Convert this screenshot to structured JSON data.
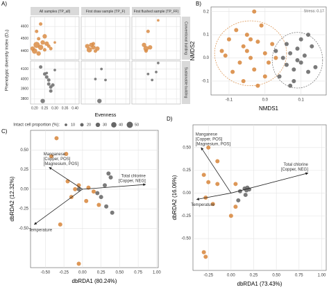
{
  "chart_data": [
    {
      "type": "faceted_scatter",
      "panel_label": "A)",
      "x_label": "Evenness",
      "y_label": "Phenotypic diversity index (D₂)",
      "columns": [
        "All samples (TP_all)",
        "First draw sample (TP_F)",
        "First flushed sample (TP_FF)"
      ],
      "xlim": [
        0.18,
        0.42
      ],
      "xticks": [
        {
          "value": 0.2,
          "label": "0.20"
        },
        0.25,
        {
          "value": 0.3,
          "label": "0.30"
        },
        0.35,
        {
          "value": 0.4,
          "label": "0.40"
        }
      ],
      "rows": [
        {
          "label": "Conventional building",
          "color": "#d98c45",
          "ylim": [
            4330,
            4680
          ],
          "yticks": [
            4400,
            4500,
            4600
          ],
          "panels": [
            {
              "x": [
                0.19,
                0.2,
                0.21,
                0.22,
                0.22,
                0.23,
                0.24,
                0.25,
                0.26,
                0.21,
                0.23,
                0.25,
                0.27,
                0.28,
                0.3
              ],
              "y": [
                4420,
                4400,
                4450,
                4380,
                4500,
                4430,
                4470,
                4410,
                4460,
                4560,
                4620,
                4520,
                4440,
                4420,
                4470
              ],
              "size": [
                30,
                40,
                50,
                30,
                20,
                40,
                30,
                20,
                30,
                20,
                20,
                30,
                20,
                20,
                10
              ]
            },
            {
              "x": [
                0.21,
                0.22,
                0.23,
                0.24,
                0.25,
                0.26,
                0.24
              ],
              "y": [
                4440,
                4410,
                4450,
                4430,
                4400,
                4420,
                4460
              ],
              "size": [
                30,
                40,
                30,
                30,
                20,
                30,
                20
              ]
            },
            {
              "x": [
                0.24,
                0.25,
                0.26,
                0.27,
                0.25,
                0.31
              ],
              "y": [
                4450,
                4420,
                4560,
                4430,
                4400,
                4650
              ],
              "size": [
                30,
                40,
                20,
                30,
                20,
                10
              ]
            }
          ]
        },
        {
          "label": "Sustainable building",
          "color": "#6b6b6b",
          "ylim": [
            3750,
            4180
          ],
          "yticks": [
            3800,
            3900,
            4000,
            4100
          ],
          "panels": [
            {
              "x": [
                0.23,
                0.25,
                0.26,
                0.27,
                0.27,
                0.28,
                0.28,
                0.29,
                0.26,
                0.24,
                0.3
              ],
              "y": [
                4120,
                4050,
                4020,
                3950,
                3990,
                3920,
                3880,
                3940,
                4060,
                3780,
                4090
              ],
              "size": [
                20,
                20,
                20,
                20,
                20,
                20,
                20,
                20,
                10,
                30,
                10
              ]
            },
            {
              "x": [
                0.25,
                0.28,
                0.3,
                0.27
              ],
              "y": [
                4000,
                4100,
                3990,
                3780
              ],
              "size": [
                10,
                10,
                10,
                30
              ]
            },
            {
              "x": [
                0.26,
                0.28,
                0.3,
                0.31
              ],
              "y": [
                4050,
                3990,
                4070,
                4160
              ],
              "size": [
                10,
                10,
                10,
                10
              ]
            }
          ]
        }
      ],
      "size_legend": {
        "title": "Intact cell proportion (%):",
        "values": [
          10,
          20,
          30,
          40,
          50
        ]
      }
    },
    {
      "type": "scatter",
      "panel_label": "B)",
      "x_label": "NMDS1",
      "y_label": "NMDS2",
      "annotation": "Stress: 0.17",
      "xlim": [
        -0.15,
        0.17
      ],
      "xticks": [
        -0.1,
        {
          "value": 0,
          "label": "0.0"
        },
        0.1
      ],
      "ylim": [
        -0.16,
        0.22
      ],
      "yticks": [
        -0.1,
        {
          "value": 0,
          "label": "0.0"
        },
        0.1,
        0.2
      ],
      "series": [
        {
          "color": "#d98c45",
          "x": [
            -0.12,
            -0.1,
            -0.08,
            -0.07,
            -0.06,
            -0.05,
            -0.04,
            -0.03,
            -0.02,
            -0.01,
            0.0,
            0.01,
            0.02,
            -0.09,
            -0.06,
            -0.03,
            0.0,
            -0.11,
            -0.05,
            -0.02,
            0.03,
            -0.04
          ],
          "y": [
            0.03,
            0.08,
            0.12,
            -0.02,
            0.05,
            0.1,
            0.0,
            -0.05,
            0.07,
            0.14,
            0.02,
            -0.02,
            0.06,
            -0.06,
            -0.1,
            0.2,
            -0.08,
            0.01,
            0.03,
            -0.12,
            0.0,
            0.08
          ],
          "ellipse": {
            "cx": -0.04,
            "cy": 0.02,
            "rx": 0.1,
            "ry": 0.14
          }
        },
        {
          "color": "#6b6b6b",
          "x": [
            0.05,
            0.06,
            0.07,
            0.08,
            0.09,
            0.1,
            0.11,
            0.12,
            0.13,
            0.04,
            0.06,
            0.08,
            0.1,
            0.12,
            0.03,
            0.07,
            0.09,
            0.14
          ],
          "y": [
            0.0,
            -0.03,
            0.02,
            -0.05,
            0.04,
            -0.02,
            0.01,
            -0.06,
            0.05,
            -0.08,
            0.06,
            -0.1,
            0.08,
            0.1,
            0.03,
            -0.12,
            -0.01,
            -0.04
          ],
          "ellipse": {
            "cx": 0.09,
            "cy": -0.01,
            "rx": 0.07,
            "ry": 0.12
          }
        }
      ]
    },
    {
      "type": "biplot",
      "panel_label": "C)",
      "x_label": "dbRDA1 (80.24%)",
      "y_label": "dbRDA2 (12.32%)",
      "xlim": [
        -0.7,
        1.02
      ],
      "xticks": [
        {
          "value": -0.5,
          "label": "-0.50"
        },
        -0.25,
        {
          "value": 0,
          "label": "0.00"
        },
        0.25,
        {
          "value": 0.5,
          "label": "0.50"
        },
        0.75,
        {
          "value": 1,
          "label": "1.00"
        }
      ],
      "ylim": [
        -1.0,
        0.75
      ],
      "yticks": [
        {
          "value": -0.5,
          "label": "-0.50"
        },
        -0.25,
        {
          "value": 0,
          "label": "0.00"
        },
        0.25,
        {
          "value": 0.5,
          "label": "0.50"
        }
      ],
      "series": [
        {
          "color": "#d98c45",
          "x": [
            -0.35,
            -0.42,
            -0.22,
            -0.2,
            -0.1,
            -0.15,
            -0.05,
            0.08,
            0.15,
            0.22,
            -0.05,
            -0.3,
            0.05
          ],
          "y": [
            0.65,
            0.42,
            0.45,
            0.1,
            0.0,
            -0.1,
            0.05,
            0.02,
            -0.03,
            -0.2,
            -0.95,
            -0.45,
            -0.15
          ]
        },
        {
          "color": "#6b6b6b",
          "x": [
            0.35,
            0.38,
            0.3,
            0.25,
            0.32,
            0.4,
            0.2,
            -0.05
          ],
          "y": [
            0.2,
            0.15,
            0.05,
            -0.1,
            -0.22,
            -0.3,
            -0.05,
            0.0
          ]
        }
      ],
      "arrows": [
        {
          "label_lines": [
            "Manganese",
            "[Copper, POS]",
            "[Magnesium, POS]"
          ],
          "x": -0.45,
          "y": 0.28
        },
        {
          "label_lines": [
            "Temperature"
          ],
          "x": -0.65,
          "y": -0.45
        },
        {
          "label_lines": [
            "Total chlorine",
            "[Copper, NEG]"
          ],
          "x": 0.85,
          "y": 0.06
        }
      ]
    },
    {
      "type": "biplot",
      "panel_label": "D)",
      "x_label": "dbRDA1 (73.43%)",
      "y_label": "dbRDA2 (16.06%)",
      "xlim": [
        -0.42,
        1.05
      ],
      "xticks": [
        -0.25,
        {
          "value": 0,
          "label": "0.00"
        },
        0.25,
        {
          "value": 0.5,
          "label": "0.50"
        },
        0.75,
        {
          "value": 1,
          "label": "1.00"
        }
      ],
      "ylim": [
        -0.85,
        0.75
      ],
      "yticks": [
        {
          "value": -0.5,
          "label": "-0.50"
        },
        -0.25,
        {
          "value": 0,
          "label": "0.00"
        },
        0.25,
        {
          "value": 0.5,
          "label": "0.50"
        }
      ],
      "series": [
        {
          "color": "#d98c45",
          "x": [
            -0.25,
            -0.15,
            -0.3,
            -0.25,
            -0.15,
            -0.28,
            -0.2,
            -0.3,
            -0.28,
            0.05,
            0.05,
            0.0
          ],
          "y": [
            0.5,
            0.35,
            0.2,
            0.12,
            0.1,
            -0.05,
            -0.12,
            -0.65,
            -0.7,
            0.1,
            -0.15,
            -0.25
          ]
        },
        {
          "color": "#6b6b6b",
          "x": [
            0.15,
            0.18,
            0.2,
            0.17,
            0.16,
            0.08,
            0.1
          ],
          "y": [
            0.05,
            0.06,
            0.04,
            0.03,
            -0.02,
            -0.08,
            0.02
          ]
        }
      ],
      "arrows": [
        {
          "label_lines": [
            "Manganese",
            "[Copper, POS]",
            "[Magnesium, POS]"
          ],
          "x": -0.33,
          "y": 0.5
        },
        {
          "label_lines": [
            "Temperature"
          ],
          "x": -0.38,
          "y": -0.07
        },
        {
          "label_lines": [
            "Total chlorine",
            "[Copper, NEG]"
          ],
          "x": 0.85,
          "y": 0.22
        }
      ]
    }
  ]
}
